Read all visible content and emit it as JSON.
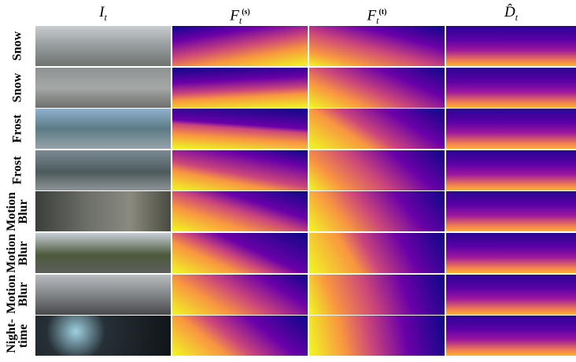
{
  "columns": [
    {
      "base": "I",
      "sub": "t"
    },
    {
      "base": "F",
      "sub": "t",
      "sup": "(s)"
    },
    {
      "base": "F",
      "sub": "t",
      "sup": "(t)"
    },
    {
      "base": "D̂",
      "sub": "t"
    }
  ],
  "rows": [
    {
      "lines": [
        "Snow"
      ]
    },
    {
      "lines": [
        "Snow"
      ]
    },
    {
      "lines": [
        "Frost"
      ]
    },
    {
      "lines": [
        "Frost"
      ]
    },
    {
      "lines": [
        "Motion",
        "Blur"
      ]
    },
    {
      "lines": [
        "Motion",
        "Blur"
      ]
    },
    {
      "lines": [
        "Motion",
        "Blur"
      ]
    },
    {
      "lines": [
        "Night-",
        "time"
      ]
    }
  ]
}
